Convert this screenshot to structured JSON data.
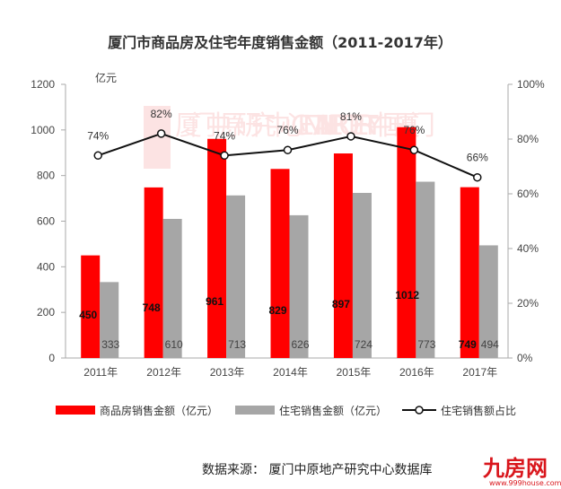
{
  "chart_data": {
    "type": "bar",
    "title": "厦门市商品房及住宅年度销售金额（2011-2017年）",
    "y_unit_label": "亿元",
    "categories": [
      "2011年",
      "2012年",
      "2013年",
      "2014年",
      "2015年",
      "2016年",
      "2017年"
    ],
    "ylim": [
      0,
      1200
    ],
    "yticks": [
      "0",
      "200",
      "400",
      "600",
      "800",
      "1000",
      "1200"
    ],
    "y2lim": [
      0,
      100
    ],
    "y2ticks": [
      "0%",
      "20%",
      "40%",
      "60%",
      "80%",
      "100%"
    ],
    "grid": false,
    "legend_position": "bottom",
    "series": [
      {
        "name": "商品房销售金额（亿元）",
        "kind": "bar",
        "color": "#ff0000",
        "values": [
          450,
          748,
          961,
          829,
          897,
          1012,
          749
        ]
      },
      {
        "name": "住宅销售金额（亿元）",
        "kind": "bar",
        "color": "#a6a6a6",
        "values": [
          333,
          610,
          713,
          626,
          724,
          773,
          494
        ]
      },
      {
        "name": "住宅销售额占比",
        "kind": "line",
        "axis": "right",
        "color": "#111111",
        "values": [
          74,
          82,
          74,
          76,
          81,
          76,
          66
        ],
        "labels": [
          "74%",
          "82%",
          "74%",
          "76%",
          "81%",
          "76%",
          "66%"
        ]
      }
    ]
  },
  "watermark": "厦门中原研究中心 CENTALINE PROPERTY 中国·厦门",
  "source": "数据来源： 厦门中原地产研究中心数据库",
  "logo": {
    "name": "九房网",
    "url": "www.999house.com"
  }
}
